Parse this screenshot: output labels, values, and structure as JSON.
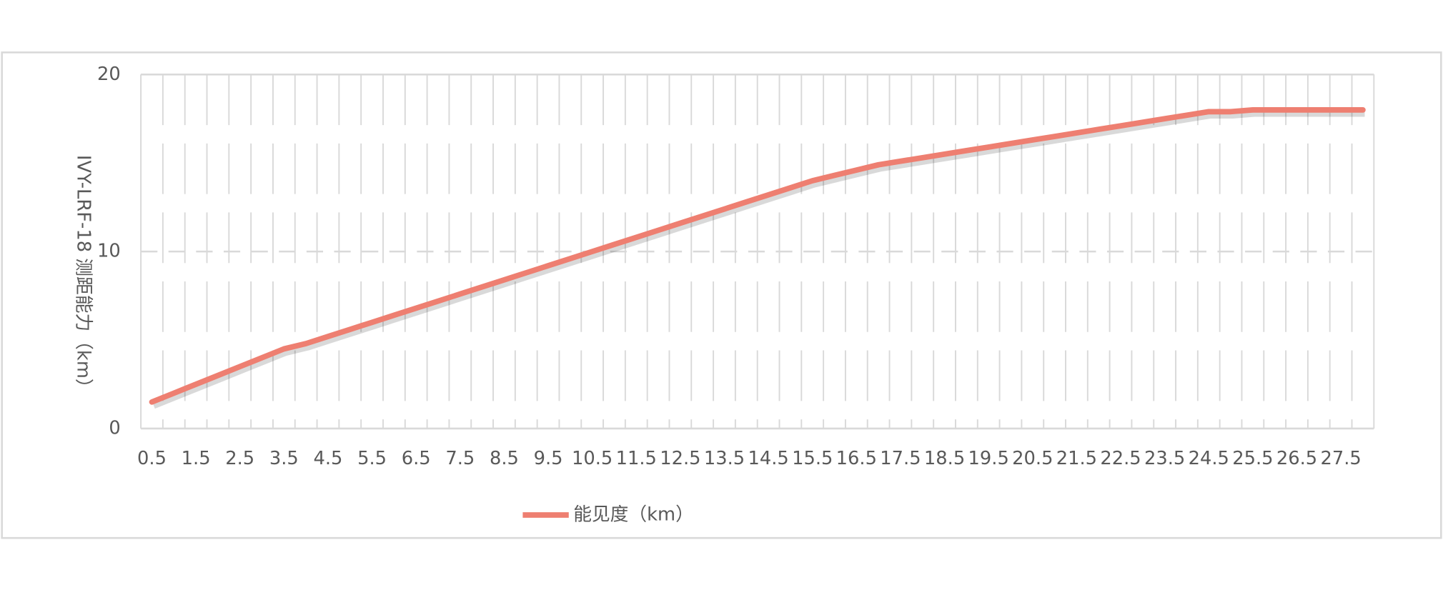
{
  "chart_data": {
    "type": "line",
    "y_label": "IVY-LRF-18 测距能力（km）",
    "categories": [
      "0.5",
      null,
      "1.5",
      null,
      "2.5",
      null,
      "3.5",
      null,
      "4.5",
      null,
      "5.5",
      null,
      "6.5",
      null,
      "7.5",
      null,
      "8.5",
      null,
      "9.5",
      null,
      "10.5",
      null,
      "11.5",
      null,
      "12.5",
      null,
      "13.5",
      null,
      "14.5",
      null,
      "15.5",
      null,
      "16.5",
      null,
      "17.5",
      null,
      "18.5",
      null,
      "19.5",
      null,
      "20.5",
      null,
      "21.5",
      null,
      "22.5",
      null,
      "23.5",
      null,
      "24.5",
      null,
      "25.5",
      null,
      "26.5",
      null,
      "27.5",
      null
    ],
    "series": [
      {
        "name": "能见度（km）",
        "color": "#ee7f71",
        "values": [
          1.5,
          2.0,
          2.5,
          3.0,
          3.5,
          4.0,
          4.5,
          4.8,
          5.2,
          5.6,
          6.0,
          6.4,
          6.8,
          7.2,
          7.6,
          8.0,
          8.4,
          8.8,
          9.2,
          9.6,
          10.0,
          10.4,
          10.8,
          11.2,
          11.6,
          12.0,
          12.4,
          12.8,
          13.2,
          13.6,
          14.0,
          14.3,
          14.6,
          14.9,
          15.1,
          15.3,
          15.5,
          15.7,
          15.9,
          16.1,
          16.3,
          16.5,
          16.7,
          16.9,
          17.1,
          17.3,
          17.5,
          17.7,
          17.9,
          17.9,
          18.0,
          18.0,
          18.0,
          18.0,
          18.0,
          18.0
        ]
      }
    ],
    "ylim": [
      0,
      20
    ],
    "yticks": [
      0,
      10,
      20
    ],
    "grid": true
  }
}
